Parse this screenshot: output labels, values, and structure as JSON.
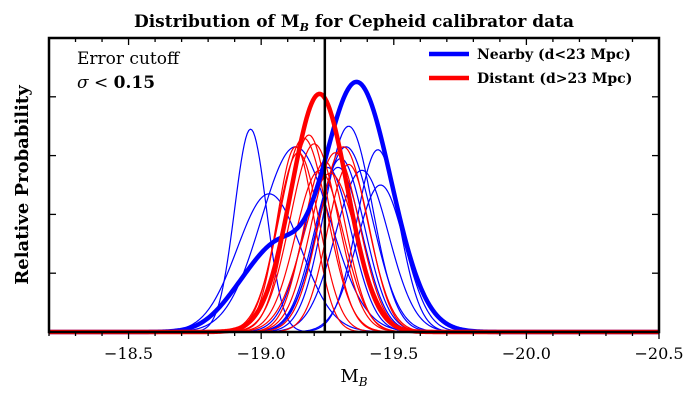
{
  "chart_data": {
    "type": "line",
    "title": "Distribution of M_B for Cepheid calibrator data",
    "xlabel": "M_B",
    "ylabel": "Relative Probability",
    "xlim": [
      -18.2,
      -20.5
    ],
    "ylim": [
      0,
      1.0
    ],
    "x_ticks": [
      -18.5,
      -19.0,
      -19.5,
      -20.0,
      -20.5
    ],
    "x_tick_labels": [
      "−18.5",
      "−19.0",
      "−19.5",
      "−20.0",
      "−20.5"
    ],
    "reference_line_x": -19.24,
    "annotation": {
      "line1": "Error cutoff",
      "symbol": "σ",
      "relation": "<",
      "value": "0.15"
    },
    "legend": {
      "location": "top-right",
      "entries": [
        {
          "label": "Nearby (d<23 Mpc)",
          "color": "#0000ff"
        },
        {
          "label": "Distant (d>23 Mpc)",
          "color": "#ff0000"
        }
      ]
    },
    "individual_curves": {
      "nearby": [
        {
          "mean": -18.96,
          "sigma": 0.06,
          "peak": 0.69
        },
        {
          "mean": -19.03,
          "sigma": 0.12,
          "peak": 0.47
        },
        {
          "mean": -19.13,
          "sigma": 0.13,
          "peak": 0.63
        },
        {
          "mean": -19.25,
          "sigma": 0.09,
          "peak": 0.56
        },
        {
          "mean": -19.29,
          "sigma": 0.09,
          "peak": 0.56
        },
        {
          "mean": -19.3,
          "sigma": 0.09,
          "peak": 0.59
        },
        {
          "mean": -19.32,
          "sigma": 0.1,
          "peak": 0.63
        },
        {
          "mean": -19.33,
          "sigma": 0.09,
          "peak": 0.7
        },
        {
          "mean": -19.38,
          "sigma": 0.1,
          "peak": 0.55
        },
        {
          "mean": -19.44,
          "sigma": 0.08,
          "peak": 0.62
        },
        {
          "mean": -19.45,
          "sigma": 0.09,
          "peak": 0.5
        }
      ],
      "distant": [
        {
          "mean": -19.13,
          "sigma": 0.07,
          "peak": 0.63
        },
        {
          "mean": -19.14,
          "sigma": 0.08,
          "peak": 0.61
        },
        {
          "mean": -19.16,
          "sigma": 0.09,
          "peak": 0.66
        },
        {
          "mean": -19.18,
          "sigma": 0.08,
          "peak": 0.67
        },
        {
          "mean": -19.2,
          "sigma": 0.09,
          "peak": 0.64
        },
        {
          "mean": -19.22,
          "sigma": 0.09,
          "peak": 0.55
        },
        {
          "mean": -19.24,
          "sigma": 0.08,
          "peak": 0.58
        },
        {
          "mean": -19.26,
          "sigma": 0.1,
          "peak": 0.54
        },
        {
          "mean": -19.28,
          "sigma": 0.09,
          "peak": 0.61
        },
        {
          "mean": -19.31,
          "sigma": 0.09,
          "peak": 0.63
        },
        {
          "mean": -19.33,
          "sigma": 0.08,
          "peak": 0.57
        }
      ]
    },
    "combined_curves": {
      "nearby": [
        {
          "mean": -18.98,
          "sigma": 0.11,
          "weight": 0.18
        },
        {
          "mean": -19.08,
          "sigma": 0.08,
          "weight": 0.12
        },
        {
          "mean": -19.36,
          "sigma": 0.13,
          "weight": 0.85
        }
      ],
      "distant": [
        {
          "mean": -19.22,
          "sigma": 0.105,
          "weight": 0.81
        }
      ]
    }
  }
}
